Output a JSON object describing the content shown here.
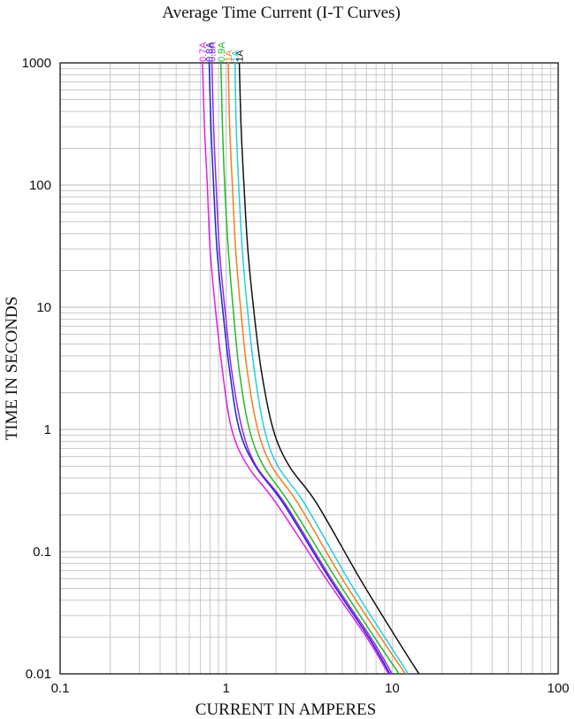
{
  "chart_data": {
    "type": "line",
    "title": "Average Time Current (I-T Curves)",
    "xlabel": "CURRENT IN AMPERES",
    "ylabel": "TIME IN SECONDS",
    "x_scale": "log",
    "y_scale": "log",
    "xlim": [
      0.1,
      100
    ],
    "ylim": [
      0.01,
      1000
    ],
    "x_ticks": [
      "0.1",
      "1",
      "10",
      "100"
    ],
    "y_ticks": [
      "0.01",
      "0.1",
      "1",
      "10",
      "100",
      "1000"
    ],
    "grid": true,
    "series": [
      {
        "name": "0.7A",
        "color": "#e020e0",
        "points": [
          [
            0.72,
            1000
          ],
          [
            0.74,
            300
          ],
          [
            0.77,
            100
          ],
          [
            0.8,
            30
          ],
          [
            0.86,
            10
          ],
          [
            0.95,
            3
          ],
          [
            1.08,
            1
          ],
          [
            1.35,
            0.5
          ],
          [
            2.0,
            0.25
          ],
          [
            4.0,
            0.06
          ],
          [
            7.0,
            0.02
          ],
          [
            9.5,
            0.01
          ]
        ]
      },
      {
        "name": "0.8A",
        "color": "#2222cc",
        "points": [
          [
            0.79,
            1000
          ],
          [
            0.81,
            300
          ],
          [
            0.84,
            100
          ],
          [
            0.88,
            30
          ],
          [
            0.95,
            10
          ],
          [
            1.05,
            3
          ],
          [
            1.2,
            1
          ],
          [
            1.5,
            0.5
          ],
          [
            2.2,
            0.25
          ],
          [
            4.2,
            0.06
          ],
          [
            7.2,
            0.02
          ],
          [
            9.7,
            0.01
          ]
        ]
      },
      {
        "name": "0.8A",
        "color": "#8a2be2",
        "points": [
          [
            0.82,
            1000
          ],
          [
            0.84,
            300
          ],
          [
            0.87,
            100
          ],
          [
            0.91,
            30
          ],
          [
            0.98,
            10
          ],
          [
            1.08,
            3
          ],
          [
            1.25,
            1
          ],
          [
            1.52,
            0.5
          ],
          [
            2.25,
            0.25
          ],
          [
            4.3,
            0.06
          ],
          [
            7.4,
            0.02
          ],
          [
            10.0,
            0.01
          ]
        ]
      },
      {
        "name": "0.9A",
        "color": "#22bb22",
        "points": [
          [
            0.93,
            1000
          ],
          [
            0.95,
            300
          ],
          [
            0.98,
            100
          ],
          [
            1.03,
            30
          ],
          [
            1.1,
            10
          ],
          [
            1.2,
            3
          ],
          [
            1.38,
            1
          ],
          [
            1.68,
            0.5
          ],
          [
            2.4,
            0.25
          ],
          [
            4.6,
            0.06
          ],
          [
            7.8,
            0.02
          ],
          [
            11.0,
            0.01
          ]
        ]
      },
      {
        "name": "1A",
        "color": "#f08020",
        "points": [
          [
            1.03,
            1000
          ],
          [
            1.05,
            300
          ],
          [
            1.09,
            100
          ],
          [
            1.14,
            30
          ],
          [
            1.22,
            10
          ],
          [
            1.34,
            3
          ],
          [
            1.55,
            1
          ],
          [
            1.88,
            0.5
          ],
          [
            2.7,
            0.25
          ],
          [
            5.0,
            0.06
          ],
          [
            8.5,
            0.02
          ],
          [
            12.0,
            0.01
          ]
        ]
      },
      {
        "name": "1A",
        "color": "#20d0e0",
        "points": [
          [
            1.13,
            1000
          ],
          [
            1.15,
            300
          ],
          [
            1.19,
            100
          ],
          [
            1.25,
            30
          ],
          [
            1.34,
            10
          ],
          [
            1.48,
            3
          ],
          [
            1.7,
            1
          ],
          [
            2.05,
            0.5
          ],
          [
            2.95,
            0.25
          ],
          [
            5.4,
            0.06
          ],
          [
            9.0,
            0.02
          ],
          [
            12.5,
            0.01
          ]
        ]
      },
      {
        "name": "1A",
        "color": "#111111",
        "points": [
          [
            1.2,
            1000
          ],
          [
            1.23,
            300
          ],
          [
            1.28,
            100
          ],
          [
            1.35,
            30
          ],
          [
            1.46,
            10
          ],
          [
            1.63,
            3
          ],
          [
            1.92,
            1
          ],
          [
            2.4,
            0.5
          ],
          [
            3.5,
            0.25
          ],
          [
            6.4,
            0.06
          ],
          [
            10.5,
            0.02
          ],
          [
            14.5,
            0.01
          ]
        ]
      }
    ]
  },
  "label_colors": {
    "grid": "#c8c8c8",
    "frame": "#222222"
  }
}
